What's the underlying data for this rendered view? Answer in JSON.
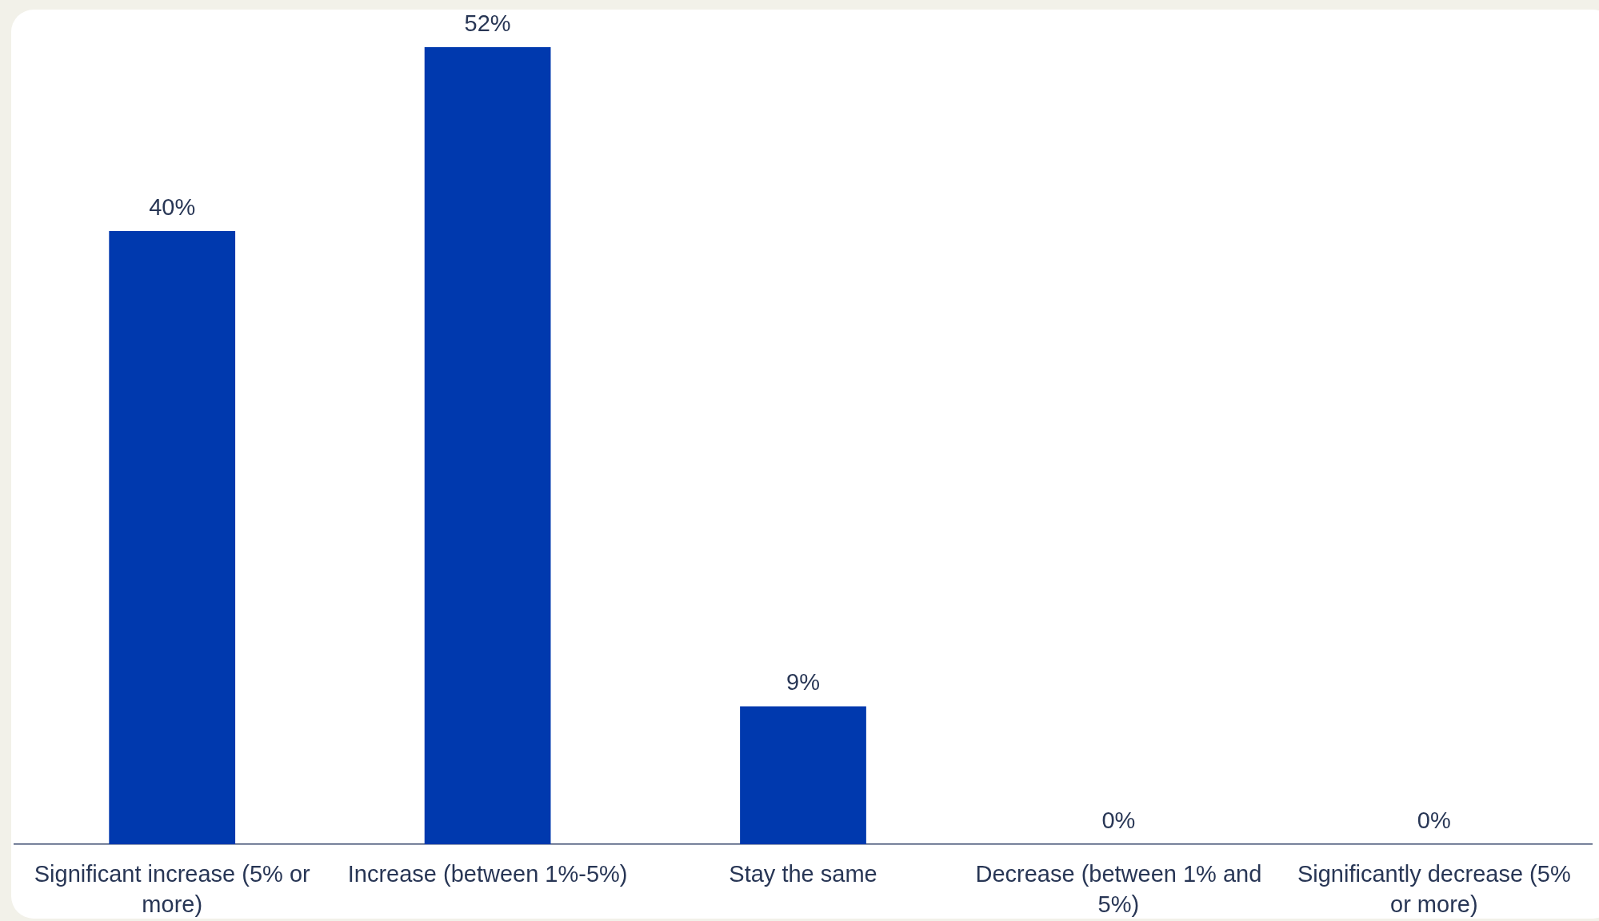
{
  "chart_data": {
    "type": "bar",
    "categories": [
      "Significant increase (5% or more)",
      "Increase (between 1%-5%)",
      "Stay the same",
      "Decrease (between 1% and 5%)",
      "Significantly decrease (5% or more)"
    ],
    "values": [
      40,
      52,
      9,
      0,
      0
    ],
    "value_labels": [
      "40%",
      "52%",
      "9%",
      "0%",
      "0%"
    ],
    "color": "#0039ae"
  }
}
